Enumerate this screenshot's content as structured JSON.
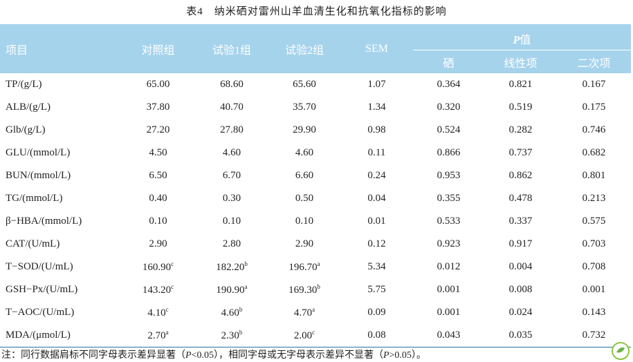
{
  "title": "表4　纳米硒对雷州山羊血清生化和抗氧化指标的影响",
  "table": {
    "header": [
      "项目",
      "对照组",
      "试验1组",
      "试验2组",
      "SEM"
    ],
    "p_header": [
      "P",
      "值"
    ],
    "sub_header": [
      "硒",
      "线性项",
      "二次项"
    ],
    "rows": [
      [
        {
          "v": "TP/(g/L)"
        },
        {
          "v": "65.00"
        },
        {
          "v": "68.60"
        },
        {
          "v": "65.60"
        },
        {
          "v": "1.07"
        },
        {
          "v": "0.364"
        },
        {
          "v": "0.821"
        },
        {
          "v": "0.167"
        }
      ],
      [
        {
          "v": "ALB/(g/L)"
        },
        {
          "v": "37.80"
        },
        {
          "v": "40.70"
        },
        {
          "v": "35.70"
        },
        {
          "v": "1.34"
        },
        {
          "v": "0.320"
        },
        {
          "v": "0.519"
        },
        {
          "v": "0.175"
        }
      ],
      [
        {
          "v": "Glb/(g/L)"
        },
        {
          "v": "27.20"
        },
        {
          "v": "27.80"
        },
        {
          "v": "29.90"
        },
        {
          "v": "0.98"
        },
        {
          "v": "0.524"
        },
        {
          "v": "0.282"
        },
        {
          "v": "0.746"
        }
      ],
      [
        {
          "v": "GLU/(mmol/L)"
        },
        {
          "v": "4.50"
        },
        {
          "v": "4.60"
        },
        {
          "v": "4.60"
        },
        {
          "v": "0.11"
        },
        {
          "v": "0.866"
        },
        {
          "v": "0.737"
        },
        {
          "v": "0.682"
        }
      ],
      [
        {
          "v": "BUN/(mmol/L)"
        },
        {
          "v": "6.50"
        },
        {
          "v": "6.70"
        },
        {
          "v": "6.60"
        },
        {
          "v": "0.24"
        },
        {
          "v": "0.953"
        },
        {
          "v": "0.862"
        },
        {
          "v": "0.801"
        }
      ],
      [
        {
          "v": "TG/(mmol/L)"
        },
        {
          "v": "0.40"
        },
        {
          "v": "0.30"
        },
        {
          "v": "0.50"
        },
        {
          "v": "0.04"
        },
        {
          "v": "0.355"
        },
        {
          "v": "0.478"
        },
        {
          "v": "0.213"
        }
      ],
      [
        {
          "v": "β−HBA/(mmol/L)"
        },
        {
          "v": "0.10"
        },
        {
          "v": "0.10"
        },
        {
          "v": "0.10"
        },
        {
          "v": "0.01"
        },
        {
          "v": "0.533"
        },
        {
          "v": "0.337"
        },
        {
          "v": "0.575"
        }
      ],
      [
        {
          "v": "CAT/(U/mL)"
        },
        {
          "v": "2.90"
        },
        {
          "v": "2.80"
        },
        {
          "v": "2.90"
        },
        {
          "v": "0.12"
        },
        {
          "v": "0.923"
        },
        {
          "v": "0.917"
        },
        {
          "v": "0.703"
        }
      ],
      [
        {
          "v": "T−SOD/(U/mL)"
        },
        {
          "v": "160.90",
          "sup": "c"
        },
        {
          "v": "182.20",
          "sup": "b"
        },
        {
          "v": "196.70",
          "sup": "a"
        },
        {
          "v": "5.34"
        },
        {
          "v": "0.012"
        },
        {
          "v": "0.004"
        },
        {
          "v": "0.708"
        }
      ],
      [
        {
          "v": "GSH−Px/(U/mL)"
        },
        {
          "v": "143.20",
          "sup": "c"
        },
        {
          "v": "190.90",
          "sup": "a"
        },
        {
          "v": "169.30",
          "sup": "b"
        },
        {
          "v": "5.75"
        },
        {
          "v": "0.001"
        },
        {
          "v": "0.008"
        },
        {
          "v": "0.001"
        }
      ],
      [
        {
          "v": "T−AOC/(U/mL)"
        },
        {
          "v": "4.10",
          "sup": "c"
        },
        {
          "v": "4.60",
          "sup": "b"
        },
        {
          "v": "4.70",
          "sup": "a"
        },
        {
          "v": "0.09"
        },
        {
          "v": "0.001"
        },
        {
          "v": "0.024"
        },
        {
          "v": "0.143"
        }
      ],
      [
        {
          "v": "MDA/(μmol/L)"
        },
        {
          "v": "2.70",
          "sup": "a"
        },
        {
          "v": "2.30",
          "sup": "b"
        },
        {
          "v": "2.00",
          "sup": "c"
        },
        {
          "v": "0.08"
        },
        {
          "v": "0.043"
        },
        {
          "v": "0.035"
        },
        {
          "v": "0.732"
        }
      ]
    ]
  },
  "note": [
    "注：同行数据肩标不同字母表示差异显著（",
    "P",
    "<0.05），相同字母或无字母表示差异不显著（",
    "P",
    ">0.05）。"
  ]
}
